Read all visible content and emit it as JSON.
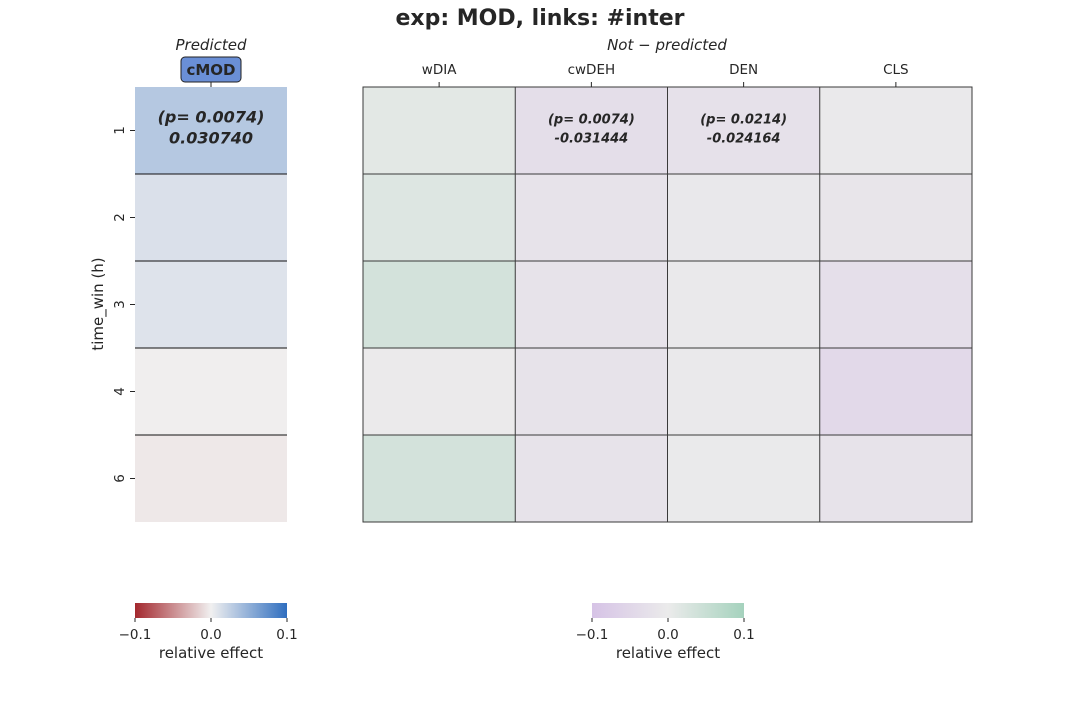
{
  "title": "exp: MOD, links: #inter",
  "ylabel": "time_win (h)",
  "rows": [
    "1",
    "2",
    "3",
    "4",
    "6"
  ],
  "chart_data": [
    {
      "type": "heatmap",
      "subtitle": "Predicted",
      "columns": [
        "cMOD"
      ],
      "values": [
        [
          0.03074
        ],
        [
          0.012
        ],
        [
          0.01
        ],
        [
          -0.001
        ],
        [
          -0.004
        ]
      ],
      "annotations": [
        {
          "row": 0,
          "col": 0,
          "p_text": "(p= 0.0074)",
          "value_text": "0.030740"
        }
      ],
      "colormap": {
        "low": "#a3282e",
        "mid": "#f1f0f0",
        "high": "#2f6ebf"
      },
      "vlim": [
        -0.1,
        0.1
      ],
      "colorbar": {
        "ticks": [
          "−0.1",
          "0.0",
          "0.1"
        ],
        "label": "relative effect"
      }
    },
    {
      "type": "heatmap",
      "subtitle": "Not − predicted",
      "columns": [
        "wDIA",
        "cwDEH",
        "DEN",
        "CLS"
      ],
      "values": [
        [
          0.012,
          -0.031444,
          -0.024164,
          -0.006
        ],
        [
          0.02,
          -0.02,
          -0.008,
          -0.015
        ],
        [
          0.035,
          -0.021,
          -0.005,
          -0.03
        ],
        [
          -0.002,
          -0.02,
          -0.004,
          -0.045
        ],
        [
          0.035,
          -0.02,
          -0.003,
          -0.02
        ]
      ],
      "annotations": [
        {
          "row": 0,
          "col": 1,
          "p_text": "(p= 0.0074)",
          "value_text": "-0.031444"
        },
        {
          "row": 0,
          "col": 2,
          "p_text": "(p= 0.0214)",
          "value_text": "-0.024164"
        }
      ],
      "colormap": {
        "low": "#d6c3e6",
        "mid": "#ebebeb",
        "high": "#a5d2bd"
      },
      "vlim": [
        -0.1,
        0.1
      ],
      "colorbar": {
        "ticks": [
          "−0.1",
          "0.0",
          "0.1"
        ],
        "label": "relative effect"
      }
    }
  ]
}
